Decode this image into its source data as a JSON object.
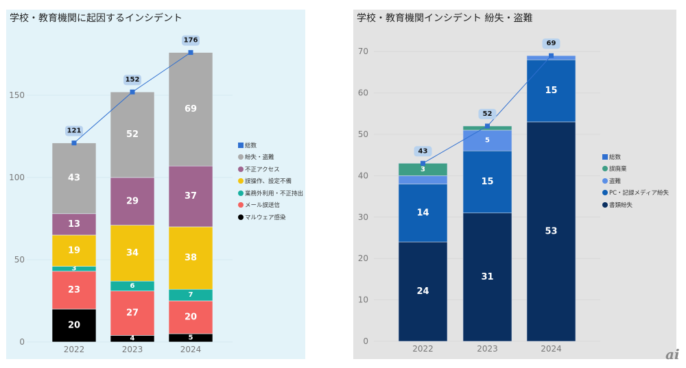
{
  "chart_data": [
    {
      "type": "bar",
      "stacked": true,
      "title": "学校・教育機関に起因するインシデント",
      "categories": [
        "2022",
        "2023",
        "2024"
      ],
      "ylim": [
        0,
        176
      ],
      "yticks": [
        0,
        50,
        100,
        150
      ],
      "grid": true,
      "legend_position": "right",
      "series": [
        {
          "name": "マルウェア感染",
          "color": "#000000",
          "values": [
            20,
            4,
            5
          ]
        },
        {
          "name": "メール誤送信",
          "color": "#f4625f",
          "values": [
            23,
            27,
            20
          ]
        },
        {
          "name": "業務外利用・不正持出",
          "color": "#17b0a0",
          "values": [
            3,
            6,
            7
          ]
        },
        {
          "name": "誤操作、設定不備",
          "color": "#f2c40f",
          "values": [
            19,
            34,
            38
          ]
        },
        {
          "name": "不正アクセス",
          "color": "#a0658f",
          "values": [
            13,
            29,
            37
          ]
        },
        {
          "name": "紛失・盗難",
          "color": "#ababab",
          "values": [
            43,
            52,
            69
          ]
        }
      ],
      "total_line": {
        "name": "総数",
        "color": "#2f6fd0",
        "values": [
          121,
          152,
          176
        ]
      },
      "legend": [
        "総数",
        "紛失・盗難",
        "不正アクセス",
        "誤操作、設定不備",
        "業務外利用・不正持出",
        "メール誤送信",
        "マルウェア感染"
      ],
      "xlabel": "",
      "ylabel": ""
    },
    {
      "type": "bar",
      "stacked": true,
      "title": "学校・教育機関インシデント 紛失・盗難",
      "categories": [
        "2022",
        "2023",
        "2024"
      ],
      "ylim": [
        0,
        70
      ],
      "yticks": [
        0,
        10,
        20,
        30,
        40,
        50,
        60,
        70
      ],
      "grid": true,
      "legend_position": "right",
      "series": [
        {
          "name": "書類紛失",
          "color": "#0a2f60",
          "values": [
            24,
            31,
            53
          ]
        },
        {
          "name": "PC・記録メディア紛失",
          "color": "#0f5fb3",
          "values": [
            14,
            15,
            15
          ]
        },
        {
          "name": "盗難",
          "color": "#5b8fe6",
          "values": [
            2,
            5,
            1
          ]
        },
        {
          "name": "誤廃棄",
          "color": "#3e9e86",
          "values": [
            3,
            1,
            0
          ]
        }
      ],
      "total_line": {
        "name": "総数",
        "color": "#2f6fd0",
        "values": [
          43,
          52,
          69
        ]
      },
      "legend": [
        "総数",
        "誤廃棄",
        "盗難",
        "PC・記録メディア紛失",
        "書類紛失"
      ],
      "xlabel": "",
      "ylabel": ""
    }
  ],
  "watermark": "ai"
}
